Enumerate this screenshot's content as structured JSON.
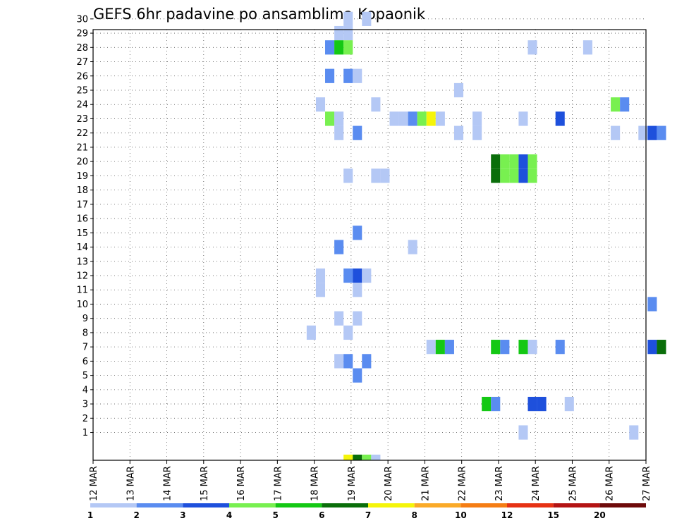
{
  "chart_data": {
    "type": "heatmap",
    "title": "GEFS 6hr padavine po ansamblima Kopaonik",
    "x_tick_labels": [
      "12 MAR",
      "13 MAR",
      "14 MAR",
      "15 MAR",
      "16 MAR",
      "17 MAR",
      "18 MAR",
      "19 MAR",
      "20 MAR",
      "21 MAR",
      "22 MAR",
      "23 MAR",
      "24 MAR",
      "25 MAR",
      "26 MAR",
      "27 MAR"
    ],
    "y_tick_labels": [
      "1",
      "2",
      "3",
      "4",
      "5",
      "6",
      "7",
      "8",
      "9",
      "10",
      "11",
      "12",
      "13",
      "14",
      "15",
      "16",
      "17",
      "18",
      "19",
      "20",
      "21",
      "22",
      "23",
      "24",
      "25",
      "26",
      "27",
      "28",
      "29",
      "30"
    ],
    "ylim": [
      0,
      30
    ],
    "grid": true,
    "colorbar": {
      "labels": [
        "1",
        "2",
        "3",
        "4",
        "5",
        "6",
        "7",
        "8",
        "10",
        "12",
        "15",
        "20"
      ],
      "colors": [
        "#b4c8f5",
        "#5a8cf0",
        "#1e50dc",
        "#78f050",
        "#14c814",
        "#0a6e0a",
        "#f5f50a",
        "#faaa28",
        "#f57d14",
        "#e63214",
        "#b41414",
        "#6e0a0a"
      ]
    },
    "cells": [
      {
        "day": 6.92,
        "member": 30,
        "v": 1
      },
      {
        "day": 7.42,
        "member": 30,
        "v": 1
      },
      {
        "day": 6.67,
        "member": 29,
        "v": 1
      },
      {
        "day": 6.92,
        "member": 29,
        "v": 1
      },
      {
        "day": 6.42,
        "member": 28,
        "v": 2
      },
      {
        "day": 6.67,
        "member": 28,
        "v": 5
      },
      {
        "day": 6.92,
        "member": 28,
        "v": 4
      },
      {
        "day": 11.92,
        "member": 28,
        "v": 1
      },
      {
        "day": 13.42,
        "member": 28,
        "v": 1
      },
      {
        "day": 6.42,
        "member": 26,
        "v": 2
      },
      {
        "day": 6.92,
        "member": 26,
        "v": 2
      },
      {
        "day": 7.17,
        "member": 26,
        "v": 1
      },
      {
        "day": 9.92,
        "member": 25,
        "v": 1
      },
      {
        "day": 6.17,
        "member": 24,
        "v": 1
      },
      {
        "day": 7.67,
        "member": 24,
        "v": 1
      },
      {
        "day": 14.17,
        "member": 24,
        "v": 4
      },
      {
        "day": 14.42,
        "member": 24,
        "v": 2
      },
      {
        "day": 6.42,
        "member": 23,
        "v": 4
      },
      {
        "day": 6.67,
        "member": 23,
        "v": 1
      },
      {
        "day": 8.17,
        "member": 23,
        "v": 1
      },
      {
        "day": 8.42,
        "member": 23,
        "v": 1
      },
      {
        "day": 8.67,
        "member": 23,
        "v": 2
      },
      {
        "day": 8.92,
        "member": 23,
        "v": 4
      },
      {
        "day": 9.17,
        "member": 23,
        "v": 7
      },
      {
        "day": 9.42,
        "member": 23,
        "v": 1
      },
      {
        "day": 10.42,
        "member": 23,
        "v": 1
      },
      {
        "day": 11.67,
        "member": 23,
        "v": 1
      },
      {
        "day": 12.67,
        "member": 23,
        "v": 3
      },
      {
        "day": 6.67,
        "member": 22,
        "v": 1
      },
      {
        "day": 7.17,
        "member": 22,
        "v": 2
      },
      {
        "day": 9.92,
        "member": 22,
        "v": 1
      },
      {
        "day": 10.42,
        "member": 22,
        "v": 1
      },
      {
        "day": 14.17,
        "member": 22,
        "v": 1
      },
      {
        "day": 14.92,
        "member": 22,
        "v": 1
      },
      {
        "day": 15.17,
        "member": 22,
        "v": 3
      },
      {
        "day": 15.42,
        "member": 22,
        "v": 2
      },
      {
        "day": 10.92,
        "member": 20,
        "v": 6
      },
      {
        "day": 11.17,
        "member": 20,
        "v": 4
      },
      {
        "day": 11.42,
        "member": 20,
        "v": 4
      },
      {
        "day": 11.67,
        "member": 20,
        "v": 3
      },
      {
        "day": 11.92,
        "member": 20,
        "v": 4
      },
      {
        "day": 6.92,
        "member": 19,
        "v": 1
      },
      {
        "day": 7.67,
        "member": 19,
        "v": 1
      },
      {
        "day": 7.92,
        "member": 19,
        "v": 1
      },
      {
        "day": 10.92,
        "member": 19,
        "v": 6
      },
      {
        "day": 11.17,
        "member": 19,
        "v": 4
      },
      {
        "day": 11.42,
        "member": 19,
        "v": 4
      },
      {
        "day": 11.67,
        "member": 19,
        "v": 3
      },
      {
        "day": 11.92,
        "member": 19,
        "v": 4
      },
      {
        "day": 7.17,
        "member": 15,
        "v": 2
      },
      {
        "day": 6.67,
        "member": 14,
        "v": 2
      },
      {
        "day": 8.67,
        "member": 14,
        "v": 1
      },
      {
        "day": 6.92,
        "member": 12,
        "v": 2
      },
      {
        "day": 7.17,
        "member": 12,
        "v": 3
      },
      {
        "day": 7.42,
        "member": 12,
        "v": 1
      },
      {
        "day": 6.17,
        "member": 12,
        "v": 1
      },
      {
        "day": 6.17,
        "member": 11,
        "v": 1
      },
      {
        "day": 7.17,
        "member": 11,
        "v": 1
      },
      {
        "day": 15.17,
        "member": 10,
        "v": 2
      },
      {
        "day": 6.67,
        "member": 9,
        "v": 1
      },
      {
        "day": 7.17,
        "member": 9,
        "v": 1
      },
      {
        "day": 5.92,
        "member": 8,
        "v": 1
      },
      {
        "day": 6.92,
        "member": 8,
        "v": 1
      },
      {
        "day": 9.17,
        "member": 7,
        "v": 1
      },
      {
        "day": 9.42,
        "member": 7,
        "v": 5
      },
      {
        "day": 9.67,
        "member": 7,
        "v": 2
      },
      {
        "day": 10.92,
        "member": 7,
        "v": 5
      },
      {
        "day": 11.17,
        "member": 7,
        "v": 2
      },
      {
        "day": 11.67,
        "member": 7,
        "v": 5
      },
      {
        "day": 11.92,
        "member": 7,
        "v": 1
      },
      {
        "day": 12.67,
        "member": 7,
        "v": 2
      },
      {
        "day": 15.17,
        "member": 7,
        "v": 3
      },
      {
        "day": 15.42,
        "member": 7,
        "v": 6
      },
      {
        "day": 6.67,
        "member": 6,
        "v": 1
      },
      {
        "day": 6.92,
        "member": 6,
        "v": 2
      },
      {
        "day": 7.42,
        "member": 6,
        "v": 2
      },
      {
        "day": 7.17,
        "member": 5,
        "v": 2
      },
      {
        "day": 10.67,
        "member": 3,
        "v": 5
      },
      {
        "day": 10.92,
        "member": 3,
        "v": 2
      },
      {
        "day": 11.92,
        "member": 3,
        "v": 3
      },
      {
        "day": 12.17,
        "member": 3,
        "v": 3
      },
      {
        "day": 12.92,
        "member": 3,
        "v": 1
      },
      {
        "day": 11.67,
        "member": 1,
        "v": 1
      },
      {
        "day": 14.67,
        "member": 1,
        "v": 1
      },
      {
        "day": 6.92,
        "member": 0,
        "v": 7
      },
      {
        "day": 7.17,
        "member": 0,
        "v": 6
      },
      {
        "day": 7.42,
        "member": 0,
        "v": 4
      },
      {
        "day": 7.67,
        "member": 0,
        "v": 1
      }
    ]
  }
}
